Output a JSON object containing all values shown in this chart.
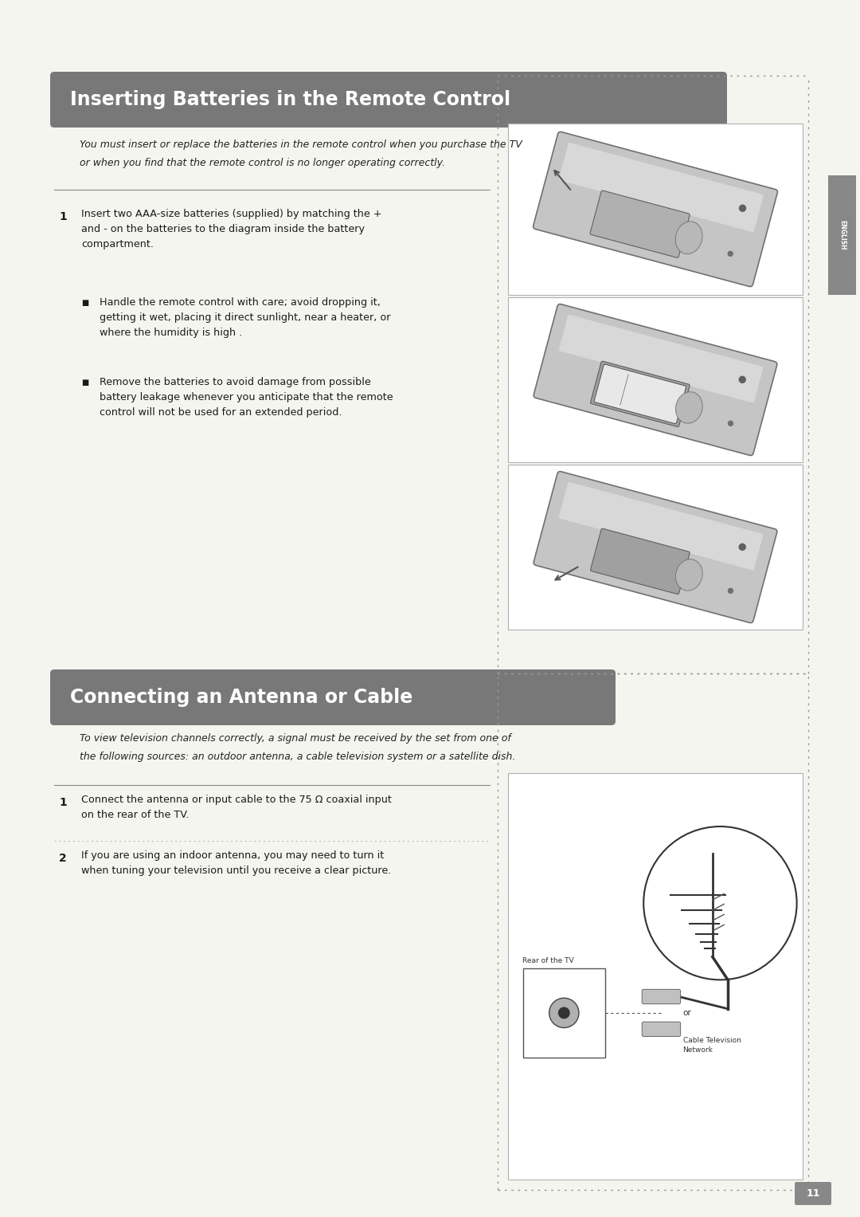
{
  "bg_color": "#f5f5f0",
  "page_width": 10.8,
  "page_height": 15.27,
  "section1_title": "Inserting Batteries in the Remote Control",
  "section1_subtitle_line1": "You must insert or replace the batteries in the remote control when you purchase the TV",
  "section1_subtitle_line2": "or when you find that the remote control is no longer operating correctly.",
  "section1_step1_text": "Insert two AAA-size batteries (supplied) by matching the +\nand - on the batteries to the diagram inside the battery\ncompartment.",
  "section1_bullet1": "Handle the remote control with care; avoid dropping it,\ngetting it wet, placing it direct sunlight, near a heater, or\nwhere the humidity is high .",
  "section1_bullet2": "Remove the batteries to avoid damage from possible\nbattery leakage whenever you anticipate that the remote\ncontrol will not be used for an extended period.",
  "section2_title": "Connecting an Antenna or Cable",
  "section2_subtitle_line1": "To view television channels correctly, a signal must be received by the set from one of",
  "section2_subtitle_line2": "the following sources: an outdoor antenna, a cable television system or a satellite dish.",
  "section2_step1_text": "Connect the antenna or input cable to the 75 Ω coaxial input\non the rear of the TV.",
  "section2_step2_text": "If you are using an indoor antenna, you may need to turn it\nwhen tuning your television until you receive a clear picture.",
  "header_bg": "#787878",
  "header_text_color": "#ffffff",
  "body_text_color": "#1a1a1a",
  "italic_text_color": "#222222",
  "dotted_line_color": "#999999",
  "sidebar_text": "ENGLISH",
  "sidebar_bg": "#888888",
  "page_number": "11",
  "page_num_bg": "#888888",
  "remote_body_color": "#c8c8c8",
  "remote_edge_color": "#888888"
}
